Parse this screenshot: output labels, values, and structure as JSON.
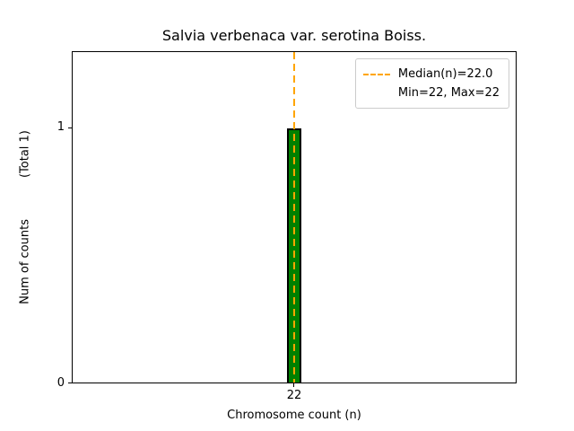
{
  "chart_data": {
    "type": "bar",
    "title": "Salvia verbenaca var. serotina Boiss.",
    "xlabel": "Chromosome count (n)",
    "ylabel": "Num of counts",
    "ylabel_note": "(Total 1)",
    "categories": [
      "22"
    ],
    "values": [
      1
    ],
    "total_counts": 1,
    "ylim": [
      0,
      1.3
    ],
    "grid": false,
    "bar_color": "#008000",
    "bar_edge_color": "#000000",
    "yticks": [
      {
        "label": "0",
        "value": 0
      },
      {
        "label": "1",
        "value": 1
      }
    ],
    "xticks": [
      {
        "label": "22"
      }
    ],
    "median_line": {
      "x": 22.0,
      "color": "#FFA500",
      "style": "dashed"
    },
    "stats": {
      "median": 22.0,
      "min": 22,
      "max": 22
    },
    "legend": {
      "position": "upper right",
      "entries": [
        {
          "label": "Median(n)=22.0",
          "marker": "dashed-line",
          "color": "#FFA500"
        },
        {
          "label": "Min=22, Max=22",
          "marker": "none"
        }
      ]
    }
  }
}
